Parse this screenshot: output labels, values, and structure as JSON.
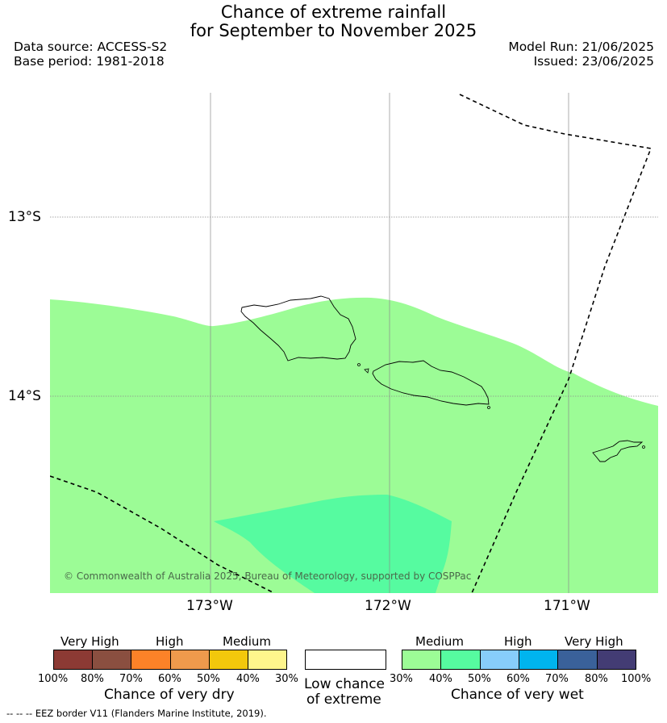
{
  "title": {
    "line1": "Chance of extreme rainfall",
    "line2": "for September to November 2025"
  },
  "meta": {
    "data_source": "Data source: ACCESS-S2",
    "base_period": "Base period: 1981-2018",
    "model_run": "Model Run: 21/06/2025",
    "issued": "Issued: 23/06/2025"
  },
  "map": {
    "lat_labels": [
      "13°S",
      "14°S"
    ],
    "lon_labels": [
      "173°W",
      "172°W",
      "171°W"
    ],
    "copyright": "© Commonwealth of Australia 2025, Bureau of Meteorology, supported by COSPPac",
    "fill_colors": {
      "medium_wet_30_40": "#9cfc96",
      "medium_wet_40_50": "#56fba0",
      "land_outline": "#000000",
      "eez_line": "#000000"
    }
  },
  "legend": {
    "dry": {
      "categories": [
        "Very High",
        "High",
        "Medium"
      ],
      "colors": [
        "#8c3a34",
        "#8a4f40",
        "#fc8228",
        "#ef9a4c",
        "#f2c80c",
        "#fef58c"
      ],
      "ticks": [
        "100%",
        "80%",
        "70%",
        "60%",
        "50%",
        "40%",
        "30%"
      ],
      "title": "Chance of very dry"
    },
    "low": {
      "line1": "Low chance",
      "line2": "of extreme",
      "color": "#ffffff"
    },
    "wet": {
      "categories": [
        "Medium",
        "High",
        "Very High"
      ],
      "colors": [
        "#9cfc96",
        "#56fba0",
        "#87cdfa",
        "#00b4ee",
        "#3a619a",
        "#433c74"
      ],
      "ticks": [
        "30%",
        "40%",
        "50%",
        "60%",
        "70%",
        "80%",
        "100%"
      ],
      "title": "Chance of very wet"
    },
    "eez_note": "--  --  -- EEZ border V11 (Flanders Marine Institute, 2019)."
  }
}
